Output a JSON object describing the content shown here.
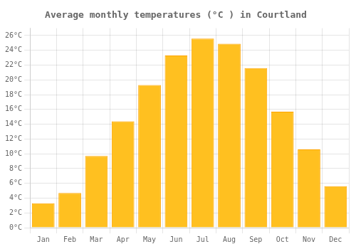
{
  "chart_data": {
    "type": "bar",
    "title": "Average monthly temperatures (°C ) in Courtland",
    "categories": [
      "Jan",
      "Feb",
      "Mar",
      "Apr",
      "May",
      "Jun",
      "Jul",
      "Aug",
      "Sep",
      "Oct",
      "Nov",
      "Dec"
    ],
    "values": [
      3.3,
      4.7,
      9.7,
      14.4,
      19.3,
      23.3,
      25.6,
      24.9,
      21.6,
      15.7,
      10.6,
      5.6
    ],
    "color": "#FFC020",
    "ylim": [
      0,
      27
    ],
    "yticks": [
      {
        "value": 0,
        "label": "0°C"
      },
      {
        "value": 2,
        "label": "2°C"
      },
      {
        "value": 4,
        "label": "4°C"
      },
      {
        "value": 6,
        "label": "6°C"
      },
      {
        "value": 8,
        "label": "8°C"
      },
      {
        "value": 10,
        "label": "10°C"
      },
      {
        "value": 12,
        "label": "12°C"
      },
      {
        "value": 14,
        "label": "14°C"
      },
      {
        "value": 16,
        "label": "16°C"
      },
      {
        "value": 18,
        "label": "18°C"
      },
      {
        "value": 20,
        "label": "20°C"
      },
      {
        "value": 22,
        "label": "22°C"
      },
      {
        "value": 24,
        "label": "24°C"
      },
      {
        "value": 26,
        "label": "26°C"
      }
    ],
    "grid": true
  }
}
